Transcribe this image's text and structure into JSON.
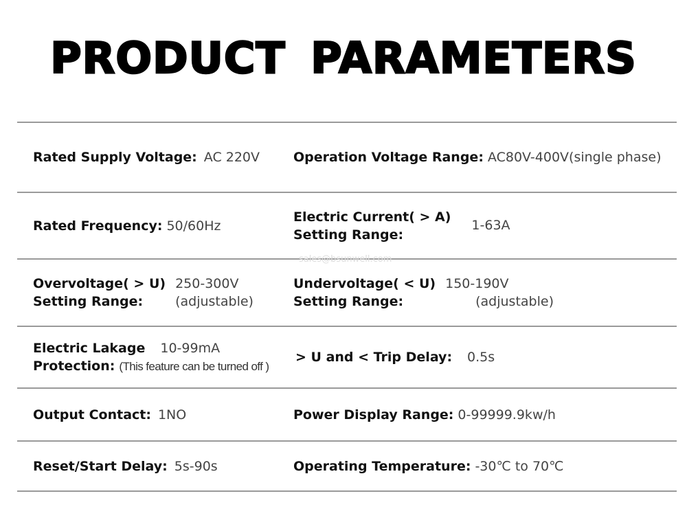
{
  "title": "PRODUCT  PARAMETERS",
  "watermark": "sales@bsunwell.com",
  "rows": [
    {
      "left": {
        "label": "Rated Supply Voltage:",
        "value": "AC  220V"
      },
      "right": {
        "label": "Operation Voltage Range:",
        "value": "AC80V-400V(single  phase)"
      }
    },
    {
      "left": {
        "label": "Rated Frequency:",
        "value": "50/60Hz"
      },
      "right": {
        "label_line1": "Electric Current( > A)",
        "label_line2": "Setting Range:",
        "value": "1-63A"
      }
    },
    {
      "left": {
        "label_line1": "Overvoltage( > U)",
        "label_line2": "Setting Range:",
        "value": "250-300V",
        "note": "(adjustable)"
      },
      "right": {
        "label_line1": "Undervoltage( < U)",
        "label_line2": "Setting Range:",
        "value": "150-190V",
        "note": "(adjustable)"
      }
    },
    {
      "left": {
        "label_line1": "Electric Lakage",
        "label_line2": "Protection:",
        "value": "10-99mA",
        "note": "(This feature can be turned off )"
      },
      "right": {
        "label": "> U and <  Trip Delay:",
        "value": "0.5s"
      }
    },
    {
      "left": {
        "label": "Output Contact:",
        "value": "1NO"
      },
      "right": {
        "label": "Power Display Range:",
        "value": "0-99999.9kw/h"
      }
    },
    {
      "left": {
        "label": "Reset/Start Delay:",
        "value": "5s-90s"
      },
      "right": {
        "label": "Operating Temperature:",
        "value": "-30℃ to 70℃"
      }
    }
  ]
}
